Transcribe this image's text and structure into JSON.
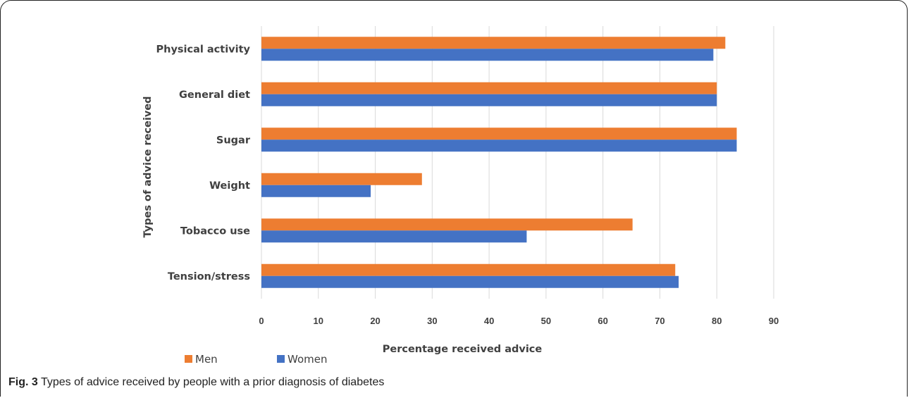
{
  "figure": {
    "caption_label": "Fig. 3",
    "caption_text": "Types of advice received by people with a prior diagnosis of diabetes"
  },
  "colors": {
    "men": "#ED7D31",
    "women": "#4472C4",
    "grid": "#d9d9d9"
  },
  "chart_data": {
    "type": "bar",
    "orientation": "horizontal",
    "categories": [
      "Physical activity",
      "General diet",
      "Sugar",
      "Weight",
      "Tobacco use",
      "Tension/stress"
    ],
    "series": [
      {
        "name": "Men",
        "values": [
          81.5,
          80.0,
          83.5,
          28.2,
          65.2,
          72.7
        ]
      },
      {
        "name": "Women",
        "values": [
          79.4,
          80.0,
          83.5,
          19.2,
          46.6,
          73.3
        ]
      }
    ],
    "xlabel": "Percentage received advice",
    "ylabel": "Types of advice received",
    "xlim": [
      0,
      90
    ],
    "xticks": [
      "0",
      "10",
      "20",
      "30",
      "40",
      "50",
      "60",
      "70",
      "80",
      "90"
    ],
    "grid": true,
    "legend": "bottom-left"
  }
}
